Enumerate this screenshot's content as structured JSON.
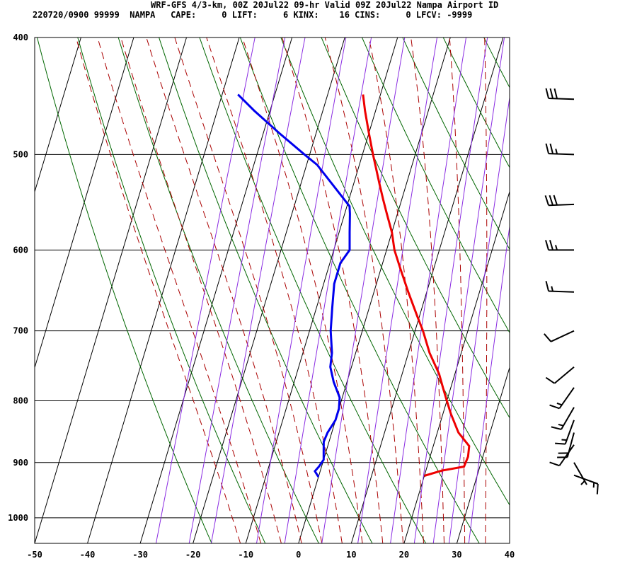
{
  "header": {
    "title": "WRF-GFS 4/3-km, 00Z 20Jul22 09-hr Valid 09Z 20Jul22 Nampa Airport ID",
    "subtitle": "220720/0900 99999  NAMPA   CAPE:     0 LIFT:     6 KINX:    16 CINS:     0 LFCV: -9999"
  },
  "chart_data": {
    "type": "line",
    "title": "WRF-GFS 4/3-km, 00Z 20Jul22 09-hr Valid 09Z 20Jul22 Nampa Airport ID",
    "xlabel": "",
    "ylabel": "",
    "x_ticks": [
      -50,
      -40,
      -30,
      -20,
      -10,
      0,
      10,
      20,
      30,
      40
    ],
    "y_ticks": [
      400,
      500,
      600,
      700,
      800,
      900,
      1000
    ],
    "xlim": [
      -50,
      40
    ],
    "ylim": [
      1050,
      400
    ],
    "y_scale": "log-pressure",
    "grid": true,
    "skew": true,
    "colors": {
      "temperature": "#ee0000",
      "dewpoint": "#0000ee",
      "dry_adiabat": "#006600",
      "moist_adiabat": "#aa0000",
      "mixing_ratio": "#8a2be2"
    },
    "series": [
      {
        "id": "temperature",
        "points": [
          [
            923,
            20
          ],
          [
            914,
            23
          ],
          [
            907,
            27
          ],
          [
            890,
            27.2
          ],
          [
            872,
            26.8
          ],
          [
            850,
            24
          ],
          [
            820,
            21.5
          ],
          [
            800,
            20
          ],
          [
            780,
            18.5
          ],
          [
            760,
            17
          ],
          [
            730,
            14
          ],
          [
            700,
            11.5
          ],
          [
            680,
            9.5
          ],
          [
            650,
            6.5
          ],
          [
            620,
            3.5
          ],
          [
            600,
            1.5
          ],
          [
            580,
            0
          ],
          [
            560,
            -2
          ],
          [
            545,
            -3.5
          ],
          [
            530,
            -5
          ],
          [
            500,
            -8
          ],
          [
            480,
            -10
          ],
          [
            460,
            -12
          ],
          [
            446,
            -13.3
          ]
        ]
      },
      {
        "id": "dewpoint",
        "points": [
          [
            925,
            0
          ],
          [
            915,
            -1
          ],
          [
            907,
            -0.5
          ],
          [
            895,
            0
          ],
          [
            880,
            -0.5
          ],
          [
            865,
            -1
          ],
          [
            850,
            -0.8
          ],
          [
            830,
            0
          ],
          [
            812,
            0
          ],
          [
            795,
            -0.5
          ],
          [
            772,
            -2.5
          ],
          [
            750,
            -4
          ],
          [
            730,
            -4.5
          ],
          [
            700,
            -6
          ],
          [
            670,
            -7
          ],
          [
            640,
            -8
          ],
          [
            615,
            -8
          ],
          [
            600,
            -7
          ],
          [
            580,
            -8
          ],
          [
            560,
            -9
          ],
          [
            552,
            -9.5
          ],
          [
            510,
            -18
          ],
          [
            500,
            -21
          ],
          [
            480,
            -27
          ],
          [
            460,
            -33
          ],
          [
            446,
            -37
          ]
        ]
      }
    ],
    "dry_adiabats_theta_c": [
      -20,
      -10,
      0,
      10,
      20,
      30,
      40,
      50,
      60,
      70,
      80,
      90,
      100
    ],
    "moist_adiabats_thetaw_c": [
      -14,
      -10,
      -6,
      -2,
      2,
      6,
      10,
      14,
      18,
      22,
      26,
      30,
      34
    ],
    "mixing_ratio_lines_gkg": [
      0.4,
      0.7,
      1,
      2,
      3,
      5,
      8,
      12,
      16,
      20,
      24,
      30
    ],
    "wind_barbs": [
      {
        "p": 450,
        "dir_deg": 272,
        "speed_kt": 30
      },
      {
        "p": 500,
        "dir_deg": 272,
        "speed_kt": 25
      },
      {
        "p": 550,
        "dir_deg": 268,
        "speed_kt": 30
      },
      {
        "p": 600,
        "dir_deg": 270,
        "speed_kt": 25
      },
      {
        "p": 650,
        "dir_deg": 272,
        "speed_kt": 15
      },
      {
        "p": 700,
        "dir_deg": 245,
        "speed_kt": 10
      },
      {
        "p": 750,
        "dir_deg": 230,
        "speed_kt": 10
      },
      {
        "p": 780,
        "dir_deg": 215,
        "speed_kt": 15
      },
      {
        "p": 810,
        "dir_deg": 210,
        "speed_kt": 15
      },
      {
        "p": 830,
        "dir_deg": 200,
        "speed_kt": 15
      },
      {
        "p": 850,
        "dir_deg": 195,
        "speed_kt": 20
      },
      {
        "p": 870,
        "dir_deg": 215,
        "speed_kt": 10
      },
      {
        "p": 900,
        "dir_deg": 150,
        "speed_kt": 5
      },
      {
        "p": 922,
        "dir_deg": 110,
        "speed_kt": 15
      }
    ]
  }
}
